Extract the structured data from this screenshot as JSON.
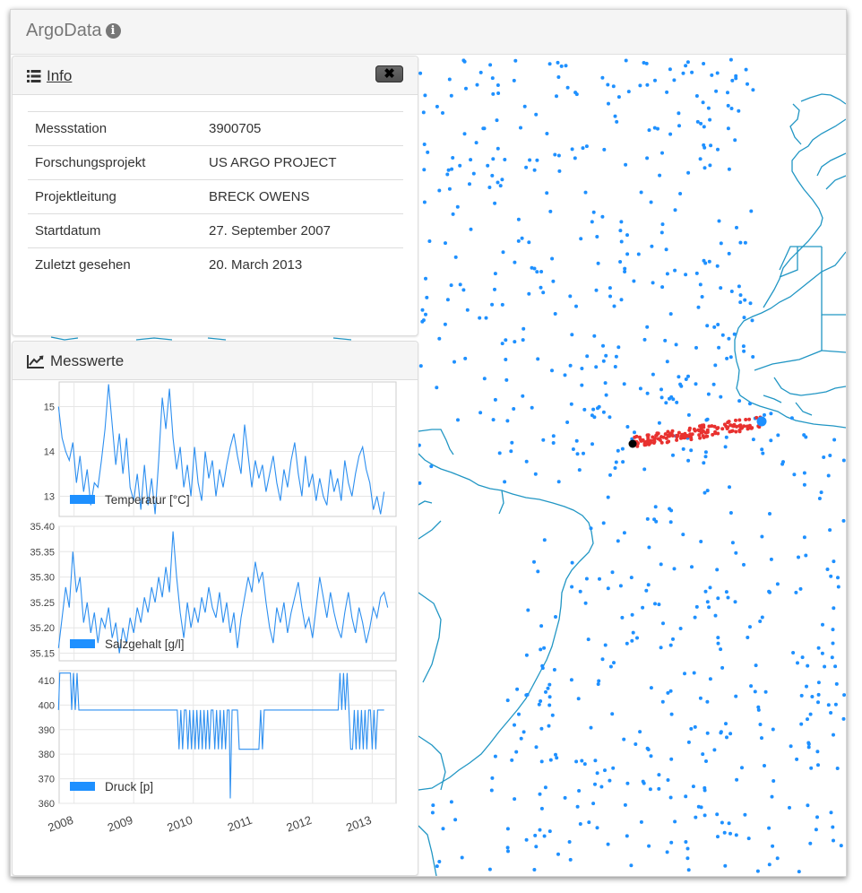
{
  "app": {
    "brand": "ArgoData",
    "brand_icon": "info-circle-icon"
  },
  "info_panel": {
    "icon": "list-icon",
    "title": "Info",
    "close_icon": "close-icon",
    "rows": [
      {
        "label": "Messstation",
        "value": "3900705"
      },
      {
        "label": "Forschungsprojekt",
        "value": "US ARGO PROJECT"
      },
      {
        "label": "Projektleitung",
        "value": "BRECK OWENS"
      },
      {
        "label": "Startdatum",
        "value": "27. September 2007"
      },
      {
        "label": "Zuletzt gesehen",
        "value": "20. March 2013"
      }
    ]
  },
  "measurements_panel": {
    "icon": "line-chart-icon",
    "title": "Messwerte"
  },
  "colors": {
    "line": "#2d8ff0",
    "float_dot": "#1e90ff",
    "track": "#e8312f",
    "coast": "#2196c4",
    "legend": "#1e90ff"
  },
  "chart_data": [
    {
      "type": "line",
      "title": "",
      "legend": "Temperatur [°C]",
      "legend_placement": "bottom-left",
      "grid": true,
      "xlim": [
        2007.75,
        2013.4
      ],
      "ylim": [
        12.55,
        15.55
      ],
      "yticks": [
        "13",
        "14",
        "15"
      ],
      "series": [
        {
          "name": "Temperatur [°C]",
          "x": [
            2007.74,
            2007.8,
            2007.86,
            2007.92,
            2007.98,
            2008.04,
            2008.1,
            2008.16,
            2008.22,
            2008.28,
            2008.34,
            2008.4,
            2008.46,
            2008.52,
            2008.58,
            2008.64,
            2008.7,
            2008.76,
            2008.82,
            2008.88,
            2008.94,
            2009.0,
            2009.06,
            2009.12,
            2009.18,
            2009.24,
            2009.3,
            2009.36,
            2009.42,
            2009.48,
            2009.54,
            2009.6,
            2009.66,
            2009.72,
            2009.78,
            2009.84,
            2009.9,
            2009.96,
            2010.02,
            2010.08,
            2010.14,
            2010.2,
            2010.26,
            2010.32,
            2010.38,
            2010.44,
            2010.5,
            2010.56,
            2010.62,
            2010.68,
            2010.74,
            2010.8,
            2010.86,
            2010.92,
            2010.98,
            2011.04,
            2011.1,
            2011.16,
            2011.22,
            2011.28,
            2011.34,
            2011.4,
            2011.46,
            2011.52,
            2011.58,
            2011.64,
            2011.7,
            2011.76,
            2011.82,
            2011.88,
            2011.94,
            2012.0,
            2012.06,
            2012.12,
            2012.18,
            2012.24,
            2012.3,
            2012.36,
            2012.42,
            2012.48,
            2012.54,
            2012.6,
            2012.66,
            2012.72,
            2012.78,
            2012.84,
            2012.9,
            2012.96,
            2013.02,
            2013.08,
            2013.14,
            2013.2
          ],
          "y": [
            15.0,
            14.3,
            14.0,
            13.8,
            14.2,
            13.3,
            13.9,
            13.1,
            13.6,
            12.8,
            13.3,
            13.2,
            13.8,
            14.5,
            15.5,
            14.6,
            13.7,
            14.4,
            13.5,
            14.3,
            13.2,
            12.9,
            13.5,
            12.7,
            13.7,
            12.8,
            13.4,
            12.6,
            13.8,
            15.2,
            14.5,
            15.4,
            14.3,
            13.6,
            14.1,
            13.2,
            13.7,
            13.0,
            14.1,
            13.3,
            12.9,
            14.0,
            13.4,
            13.8,
            13.0,
            13.6,
            13.2,
            13.7,
            14.1,
            14.4,
            13.9,
            13.5,
            14.6,
            13.9,
            13.2,
            13.8,
            13.4,
            13.7,
            13.1,
            13.5,
            13.9,
            13.3,
            12.9,
            13.6,
            13.2,
            13.8,
            14.2,
            13.5,
            13.0,
            13.9,
            13.2,
            13.5,
            12.9,
            13.4,
            13.0,
            12.8,
            13.6,
            13.1,
            13.4,
            12.9,
            13.8,
            13.3,
            13.0,
            13.5,
            13.9,
            14.1,
            13.6,
            13.3,
            12.7,
            13.0,
            12.6,
            13.1
          ]
        }
      ]
    },
    {
      "type": "line",
      "title": "",
      "legend": "Salzgehalt [g/l]",
      "legend_placement": "bottom-left",
      "grid": true,
      "xlim": [
        2007.75,
        2013.4
      ],
      "ylim": [
        35.135,
        35.4
      ],
      "yticks": [
        "35.15",
        "35.20",
        "35.25",
        "35.30",
        "35.35",
        "35.40"
      ],
      "series": [
        {
          "name": "Salzgehalt [g/l]",
          "x": [
            2007.74,
            2007.8,
            2007.86,
            2007.92,
            2007.98,
            2008.04,
            2008.1,
            2008.16,
            2008.22,
            2008.28,
            2008.34,
            2008.4,
            2008.46,
            2008.52,
            2008.58,
            2008.64,
            2008.7,
            2008.76,
            2008.82,
            2008.88,
            2008.94,
            2009.0,
            2009.06,
            2009.12,
            2009.18,
            2009.24,
            2009.3,
            2009.36,
            2009.42,
            2009.48,
            2009.54,
            2009.6,
            2009.66,
            2009.72,
            2009.78,
            2009.84,
            2009.9,
            2009.96,
            2010.02,
            2010.08,
            2010.14,
            2010.2,
            2010.26,
            2010.32,
            2010.38,
            2010.44,
            2010.5,
            2010.56,
            2010.62,
            2010.68,
            2010.74,
            2010.8,
            2010.86,
            2010.92,
            2010.98,
            2011.04,
            2011.1,
            2011.16,
            2011.22,
            2011.28,
            2011.34,
            2011.4,
            2011.46,
            2011.52,
            2011.58,
            2011.64,
            2011.7,
            2011.76,
            2011.82,
            2011.88,
            2011.94,
            2012.0,
            2012.06,
            2012.12,
            2012.18,
            2012.24,
            2012.3,
            2012.36,
            2012.42,
            2012.48,
            2012.54,
            2012.6,
            2012.66,
            2012.72,
            2012.78,
            2012.84,
            2012.9,
            2012.96,
            2013.02,
            2013.08,
            2013.14,
            2013.2,
            2013.26
          ],
          "y": [
            35.16,
            35.22,
            35.28,
            35.24,
            35.35,
            35.27,
            35.3,
            35.21,
            35.25,
            35.19,
            35.23,
            35.17,
            35.22,
            35.2,
            35.24,
            35.18,
            35.21,
            35.15,
            35.2,
            35.17,
            35.22,
            35.19,
            35.24,
            35.21,
            35.26,
            35.23,
            35.28,
            35.25,
            35.3,
            35.26,
            35.32,
            35.27,
            35.39,
            35.3,
            35.23,
            35.18,
            35.25,
            35.2,
            35.24,
            35.21,
            35.26,
            35.23,
            35.28,
            35.24,
            35.22,
            35.27,
            35.21,
            35.25,
            35.19,
            35.23,
            35.16,
            35.22,
            35.26,
            35.3,
            35.27,
            35.33,
            35.29,
            35.31,
            35.25,
            35.2,
            35.17,
            35.24,
            35.21,
            35.25,
            35.19,
            35.23,
            35.26,
            35.29,
            35.24,
            35.2,
            35.22,
            35.18,
            35.24,
            35.3,
            35.26,
            35.22,
            35.27,
            35.23,
            35.2,
            35.18,
            35.23,
            35.27,
            35.22,
            35.19,
            35.24,
            35.21,
            35.17,
            35.2,
            35.24,
            35.22,
            35.26,
            35.27,
            35.24
          ]
        }
      ]
    },
    {
      "type": "line",
      "title": "",
      "legend": "Druck [p]",
      "legend_placement": "bottom-left",
      "grid": true,
      "xlim": [
        2007.75,
        2013.4
      ],
      "ylim": [
        360,
        414
      ],
      "yticks": [
        "360",
        "370",
        "380",
        "390",
        "400",
        "410"
      ],
      "xticks": [
        "2008",
        "2009",
        "2010",
        "2011",
        "2012",
        "2013"
      ],
      "series": [
        {
          "name": "Druck [p]",
          "x": [
            2007.74,
            2007.76,
            2007.79,
            2007.94,
            2007.96,
            2007.99,
            2008.02,
            2008.05,
            2008.08,
            2008.11,
            2009.7,
            2009.73,
            2009.76,
            2009.79,
            2009.82,
            2009.85,
            2009.88,
            2009.91,
            2009.94,
            2009.97,
            2010.0,
            2010.03,
            2010.06,
            2010.09,
            2010.12,
            2010.15,
            2010.18,
            2010.21,
            2010.24,
            2010.27,
            2010.3,
            2010.33,
            2010.36,
            2010.39,
            2010.42,
            2010.45,
            2010.48,
            2010.51,
            2010.54,
            2010.57,
            2010.6,
            2010.62,
            2010.65,
            2010.68,
            2010.71,
            2010.74,
            2010.77,
            2010.8,
            2010.83,
            2010.86,
            2010.89,
            2010.92,
            2010.95,
            2010.98,
            2011.01,
            2011.04,
            2011.07,
            2011.1,
            2011.13,
            2011.16,
            2011.19,
            2011.22,
            2011.25,
            2011.28,
            2011.31,
            2011.34,
            2011.37,
            2011.4,
            2011.43,
            2011.46,
            2011.49,
            2011.52,
            2012.4,
            2012.43,
            2012.46,
            2012.49,
            2012.52,
            2012.55,
            2012.58,
            2012.61,
            2012.64,
            2012.67,
            2012.7,
            2012.73,
            2012.76,
            2012.79,
            2012.82,
            2012.85,
            2012.88,
            2012.91,
            2012.94,
            2012.97,
            2013.0,
            2013.03,
            2013.06,
            2013.09,
            2013.12,
            2013.15,
            2013.2
          ],
          "y": [
            398,
            413,
            413,
            413,
            398,
            413,
            398,
            413,
            398,
            398,
            398,
            398,
            382,
            398,
            382,
            398,
            398,
            382,
            398,
            382,
            398,
            382,
            398,
            382,
            398,
            382,
            398,
            382,
            398,
            382,
            398,
            398,
            382,
            398,
            382,
            398,
            382,
            398,
            382,
            398,
            398,
            362,
            398,
            398,
            398,
            398,
            382,
            382,
            382,
            382,
            382,
            382,
            382,
            382,
            382,
            382,
            382,
            382,
            398,
            382,
            398,
            398,
            398,
            398,
            398,
            398,
            398,
            398,
            398,
            398,
            398,
            398,
            398,
            398,
            413,
            398,
            413,
            398,
            413,
            398,
            382,
            382,
            398,
            382,
            398,
            382,
            398,
            382,
            398,
            382,
            398,
            398,
            382,
            398,
            382,
            398,
            398,
            398,
            398
          ]
        }
      ]
    }
  ]
}
